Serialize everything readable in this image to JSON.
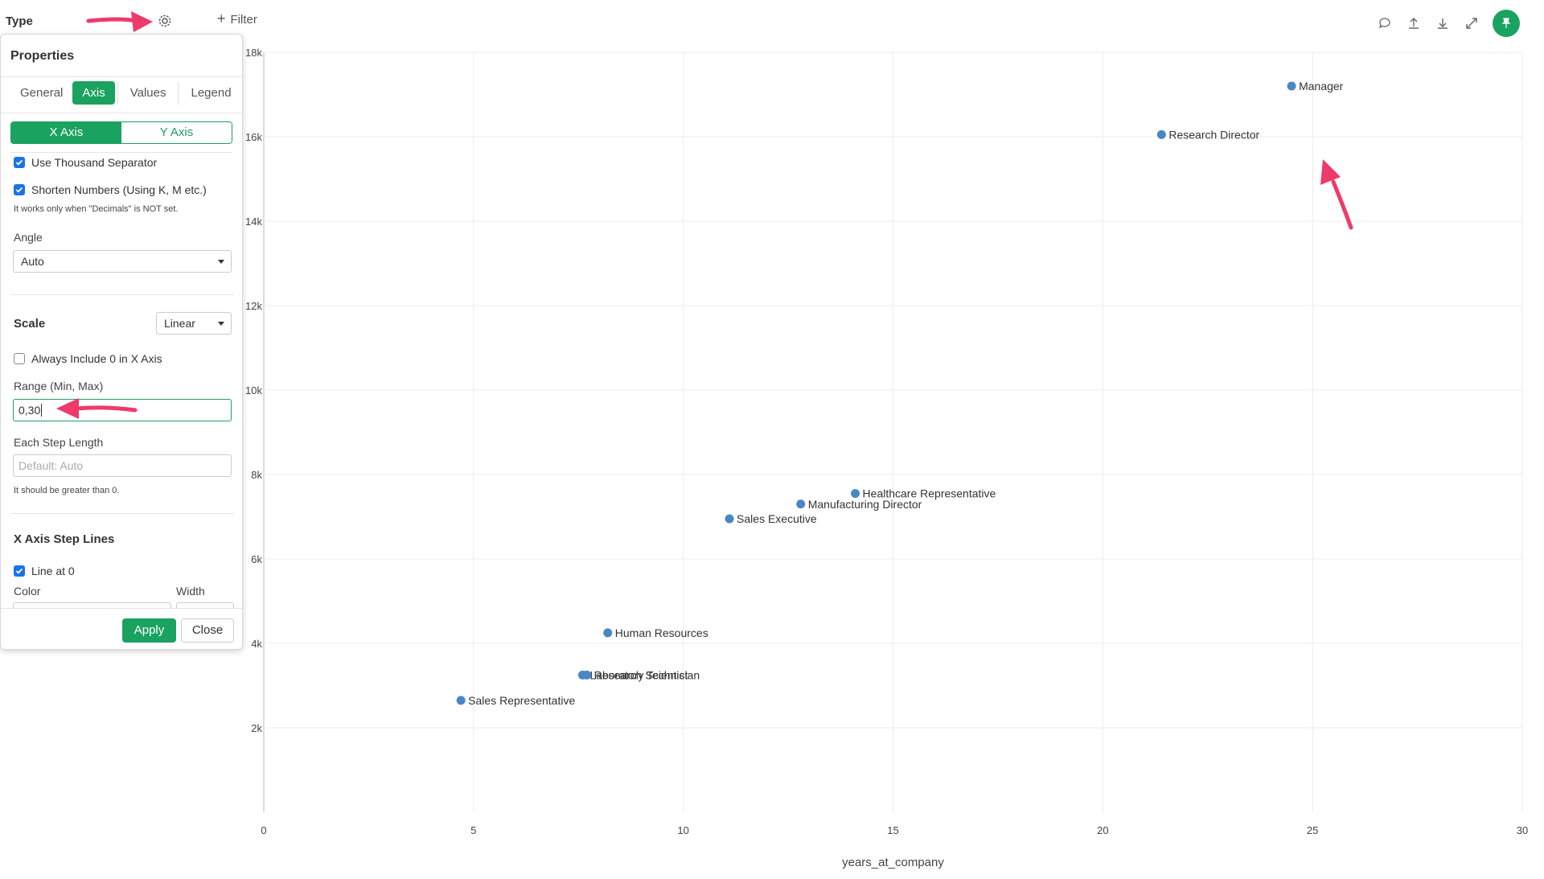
{
  "header": {
    "type_label": "Type",
    "filter_label": "Filter",
    "icons": [
      "comment-icon",
      "upload-icon",
      "download-icon",
      "expand-icon",
      "pin-icon"
    ]
  },
  "panel": {
    "title": "Properties",
    "tabs": [
      {
        "label": "General",
        "active": false
      },
      {
        "label": "Axis",
        "active": true
      },
      {
        "label": "Values",
        "active": false
      },
      {
        "label": "Legend",
        "active": false
      }
    ],
    "axis_toggle": {
      "x_label": "X Axis",
      "y_label": "Y Axis",
      "selected": "X Axis"
    },
    "use_thousand_separator": {
      "label": "Use Thousand Separator",
      "checked": true
    },
    "shorten_numbers": {
      "label": "Shorten Numbers (Using K, M etc.)",
      "checked": true
    },
    "shorten_note": "It works only when \"Decimals\" is NOT set.",
    "angle": {
      "label": "Angle",
      "value": "Auto"
    },
    "scale": {
      "label": "Scale",
      "value": "Linear"
    },
    "always_include_zero": {
      "label": "Always Include 0 in X Axis",
      "checked": false
    },
    "range": {
      "label": "Range (Min, Max)",
      "value": "0,30"
    },
    "step_length": {
      "label": "Each Step Length",
      "placeholder": "Default: Auto",
      "note": "It should be greater than 0."
    },
    "step_lines": {
      "title": "X Axis Step Lines",
      "line_at_zero": {
        "label": "Line at 0",
        "checked": true
      },
      "color_label": "Color",
      "width_label": "Width"
    },
    "apply_label": "Apply",
    "close_label": "Close"
  },
  "colors": {
    "accent": "#1aa260",
    "point": "#4a86c5",
    "arrow": "#ee3a6a",
    "checkbox": "#1a73e8"
  },
  "chart_data": {
    "type": "scatter",
    "xlabel": "years_at_company",
    "ylabel": "",
    "xlim": [
      0,
      30
    ],
    "ylim": [
      0,
      18000
    ],
    "x_ticks": [
      "0",
      "5",
      "10",
      "15",
      "20",
      "25",
      "30"
    ],
    "y_ticks": [
      "2k",
      "4k",
      "6k",
      "8k",
      "10k",
      "12k",
      "14k",
      "16k",
      "18k"
    ],
    "grid": true,
    "points": [
      {
        "label": "Manager",
        "x": 24.5,
        "y": 17200
      },
      {
        "label": "Research Director",
        "x": 21.4,
        "y": 16050
      },
      {
        "label": "Healthcare Representative",
        "x": 14.1,
        "y": 7550
      },
      {
        "label": "Manufacturing Director",
        "x": 12.8,
        "y": 7300
      },
      {
        "label": "Sales Executive",
        "x": 11.1,
        "y": 6950
      },
      {
        "label": "Human Resources",
        "x": 8.2,
        "y": 4250
      },
      {
        "label": "Laboratory Technician",
        "x": 7.6,
        "y": 3250
      },
      {
        "label": "Research Scientist",
        "x": 7.7,
        "y": 3250
      },
      {
        "label": "Sales Representative",
        "x": 4.7,
        "y": 2650
      }
    ]
  }
}
